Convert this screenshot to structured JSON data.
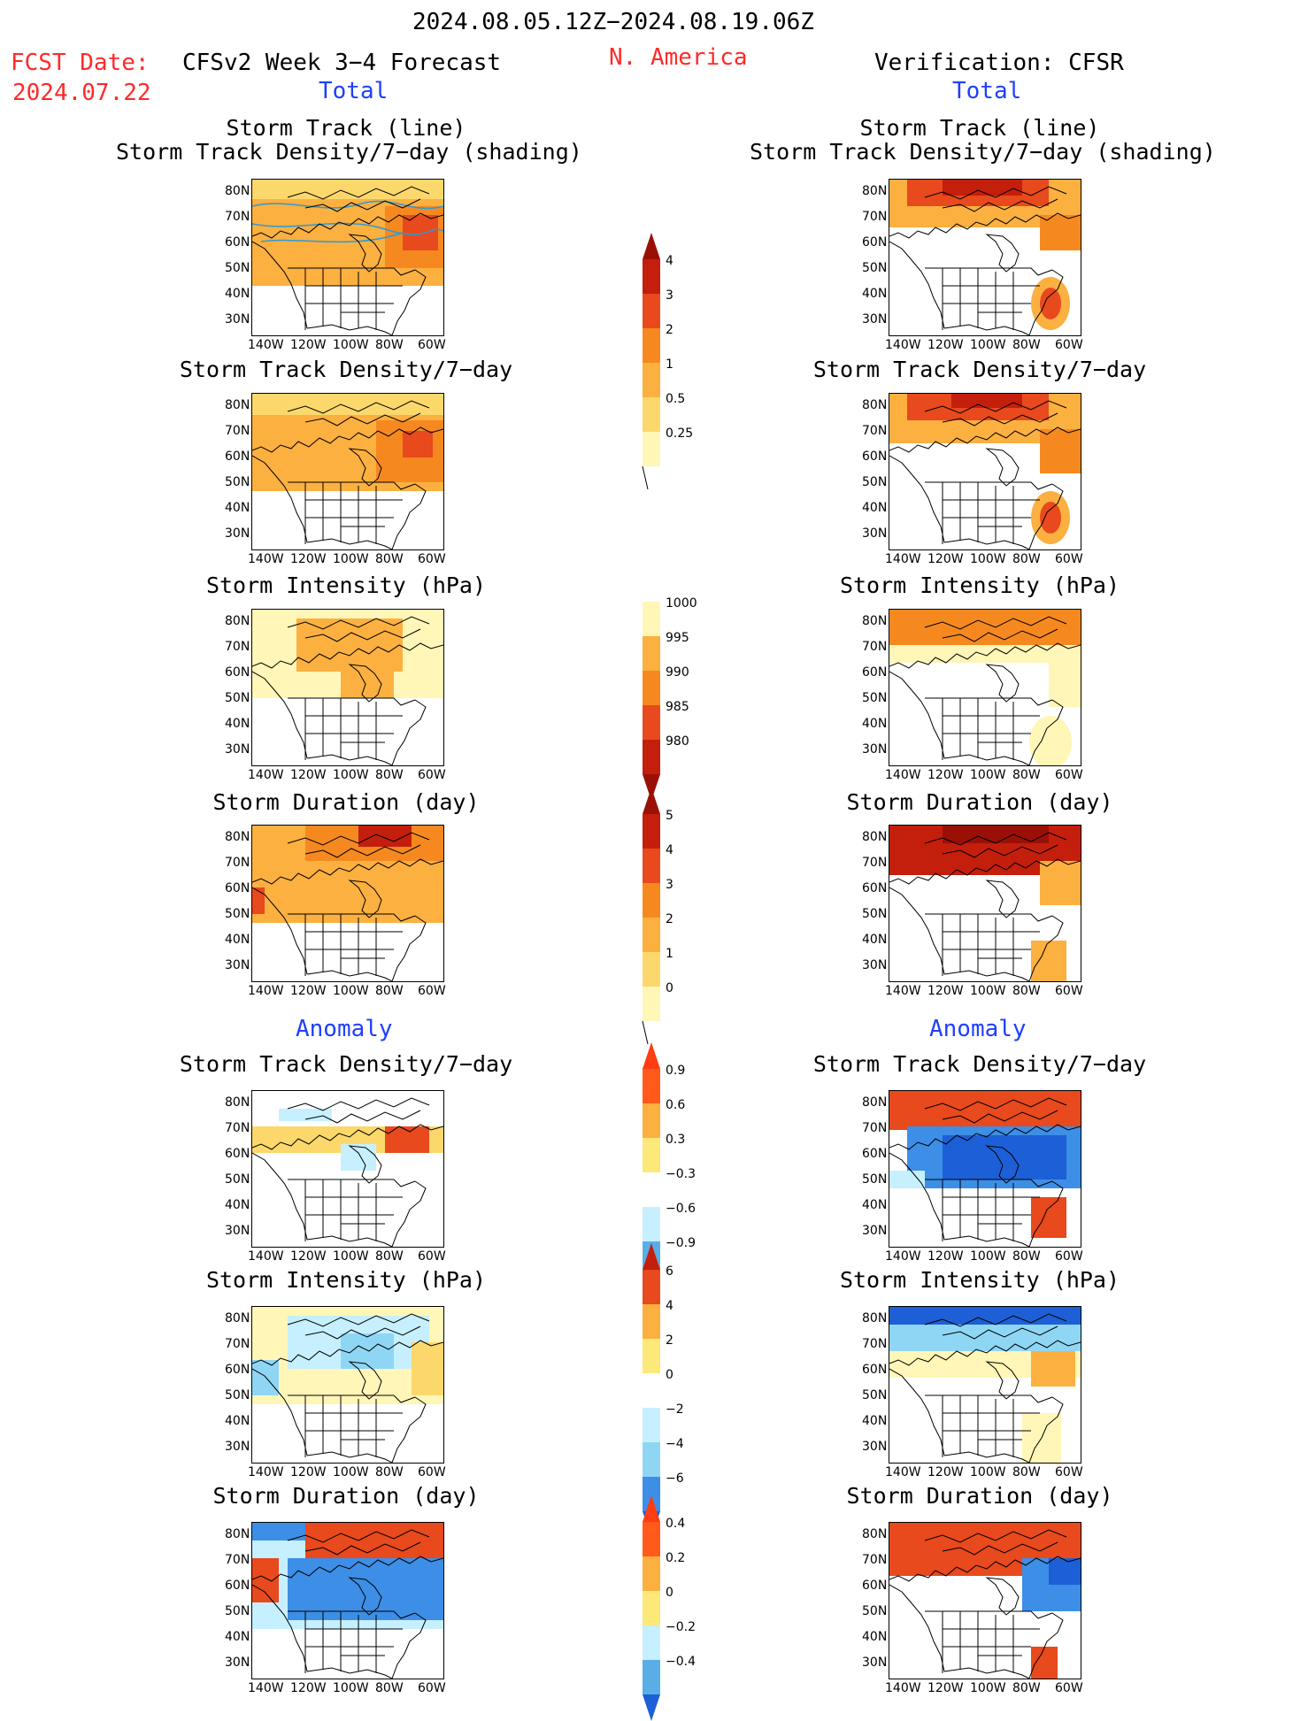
{
  "header": {
    "period": "2024.08.05.12Z−2024.08.19.06Z",
    "region": "N. America",
    "fcst_label": "FCST Date:",
    "fcst_date": "2024.07.22",
    "left_title": "CFSv2 Week 3−4 Forecast",
    "right_title": "Verification: CFSR",
    "total": "Total",
    "anomaly": "Anomaly"
  },
  "panel_titles": {
    "track_line": "Storm Track (line)",
    "track_shading": "Storm Track Density/7−day (shading)",
    "density": "Storm Track Density/7−day",
    "intensity": "Storm Intensity (hPa)",
    "duration": "Storm Duration (day)"
  },
  "axes": {
    "lat": [
      "80N",
      "70N",
      "60N",
      "50N",
      "40N",
      "30N"
    ],
    "lon": [
      "140W",
      "120W",
      "100W",
      "80W",
      "60W"
    ]
  },
  "colorbars": {
    "density_total": [
      "4",
      "3",
      "2",
      "1",
      "0.5",
      "0.25"
    ],
    "intensity_total": [
      "1000",
      "995",
      "990",
      "985",
      "980"
    ],
    "duration_total": [
      "5",
      "4",
      "3",
      "2",
      "1",
      "0"
    ],
    "density_anom": [
      "0.9",
      "0.6",
      "0.3",
      "−0.3",
      "−0.6",
      "−0.9"
    ],
    "intensity_anom": [
      "6",
      "4",
      "2",
      "0",
      "−2",
      "−4",
      "−6"
    ],
    "duration_anom": [
      "0.4",
      "0.2",
      "0",
      "−0.2",
      "−0.4"
    ]
  }
}
